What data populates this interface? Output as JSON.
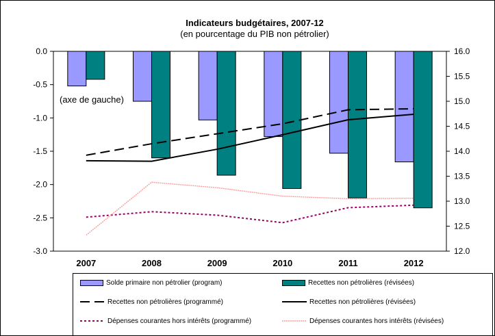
{
  "chart_data": {
    "type": "bar",
    "title": "Indicateurs budgétaires, 2007-12",
    "subtitle": "(en pourcentage du PIB non pétrolier)",
    "annotation": "(axe de gauche)",
    "categories": [
      "2007",
      "2008",
      "2009",
      "2010",
      "2011",
      "2012"
    ],
    "y_left": {
      "ylim": [
        -3.0,
        0.0
      ],
      "ticks": [
        "0.0",
        "-0.5",
        "-1.0",
        "-1.5",
        "-2.0",
        "-2.5",
        "-3.0"
      ]
    },
    "y_right": {
      "ylim": [
        12.0,
        16.0
      ],
      "ticks": [
        "16.0",
        "15.5",
        "15.0",
        "14.5",
        "14.0",
        "13.5",
        "13.0",
        "12.5",
        "12.0"
      ]
    },
    "grid": false,
    "legend_position": "bottom",
    "series": [
      {
        "name": "Solde primaire non pétrolier (program)",
        "kind": "bar",
        "axis": "left",
        "color": "#9999FF",
        "values": [
          -0.52,
          -0.75,
          -1.03,
          -1.28,
          -1.53,
          -1.66
        ]
      },
      {
        "name": "Recettes non pétrolières (révisées)",
        "kind": "bar",
        "axis": "left",
        "color": "#008080",
        "values": [
          -0.42,
          -1.6,
          -1.86,
          -2.06,
          -2.2,
          -2.35
        ]
      },
      {
        "name": "Recettes non pétrolières (programmé)",
        "kind": "line",
        "axis": "right",
        "color": "#000000",
        "style": "dashed",
        "values": [
          13.92,
          14.15,
          14.35,
          14.55,
          14.83,
          14.85
        ]
      },
      {
        "name": "Recettes non pétrolières (révisées)",
        "kind": "line",
        "axis": "right",
        "color": "#000000",
        "style": "solid",
        "values": [
          13.81,
          13.8,
          14.04,
          14.33,
          14.63,
          14.74
        ]
      },
      {
        "name": "Dépenses courantes hors intérêts (programmé)",
        "kind": "line",
        "axis": "right",
        "color": "#990066",
        "style": "dotted",
        "values": [
          12.68,
          12.79,
          12.72,
          12.57,
          12.87,
          12.92
        ]
      },
      {
        "name": "Dépenses courantes hors intérêts (révisées)",
        "kind": "line",
        "axis": "right",
        "color": "#FF9999",
        "style": "dotted",
        "values": [
          12.32,
          13.38,
          13.27,
          13.1,
          13.05,
          13.06
        ]
      }
    ]
  }
}
